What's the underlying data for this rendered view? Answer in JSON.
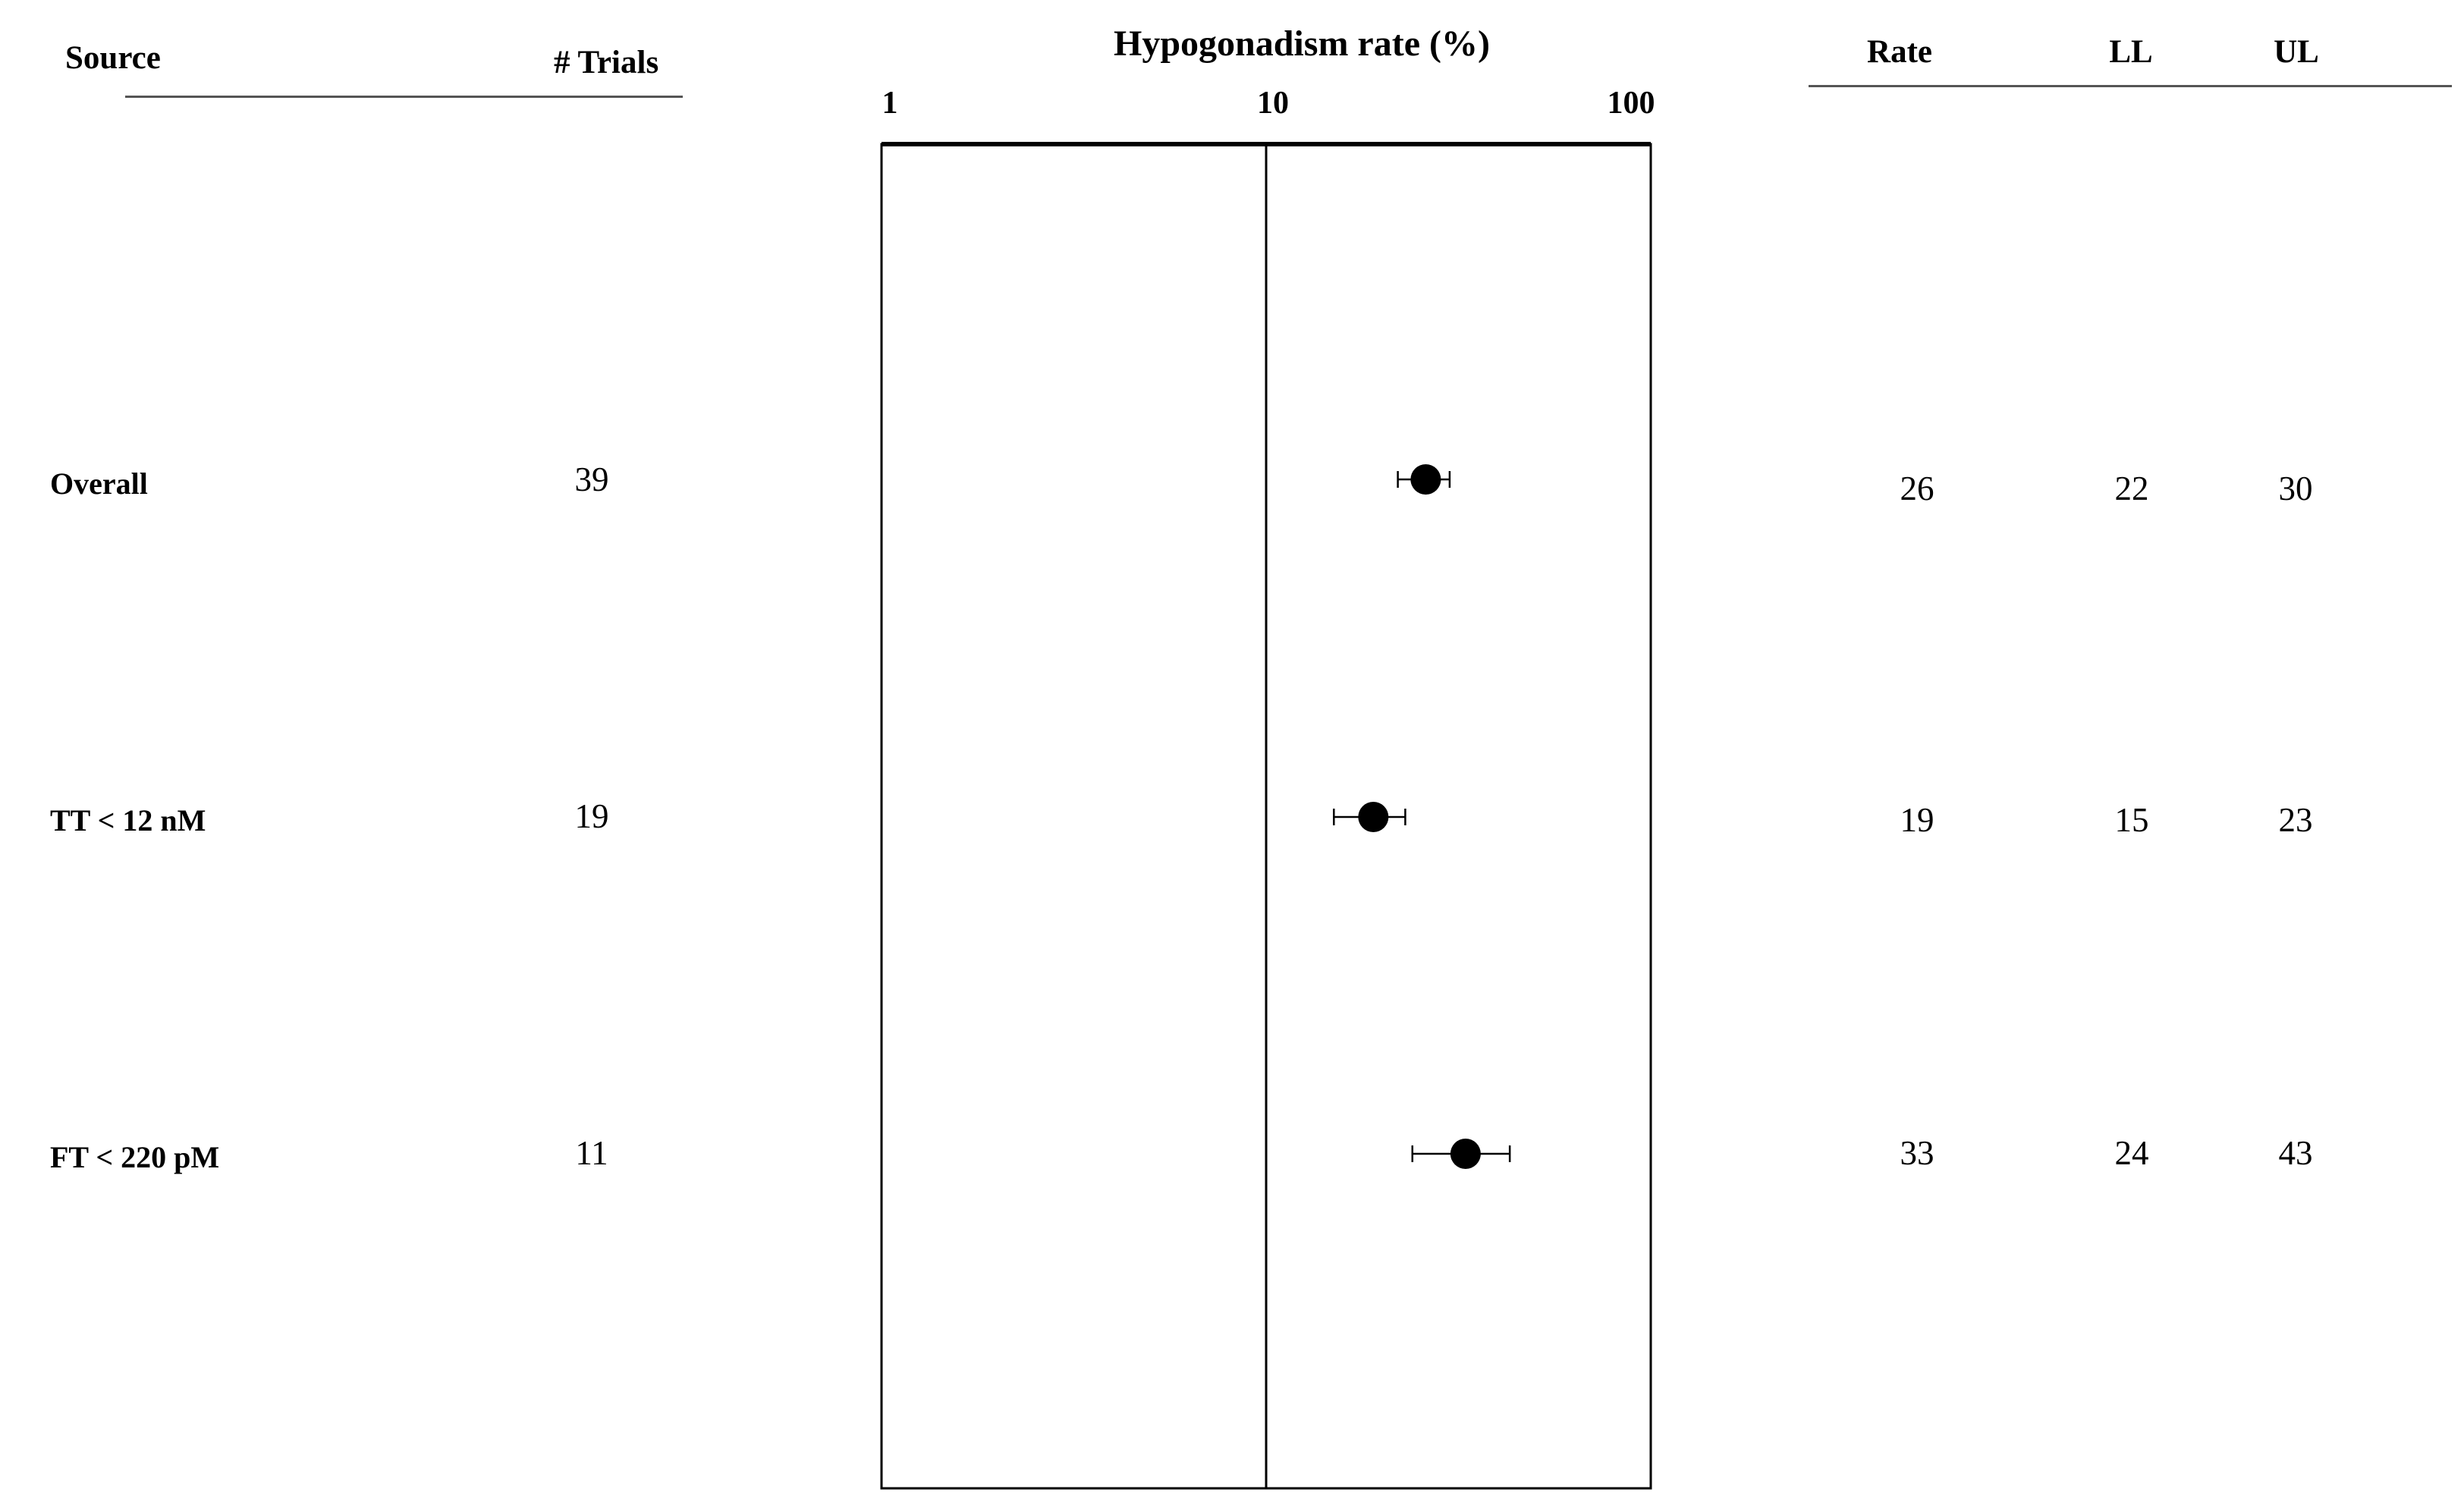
{
  "chart_data": {
    "type": "forest",
    "title": "Hypogonadism rate (%)",
    "x_scale": "log",
    "xlim": [
      1,
      100
    ],
    "x_ticks": [
      "1",
      "10",
      "100"
    ],
    "grid": false,
    "reference_line": 10,
    "columns": {
      "source": "Source",
      "trials": "# Trials",
      "rate": "Rate",
      "ll": "LL",
      "ul": "UL"
    },
    "rows": [
      {
        "source": "Overall",
        "trials": "39",
        "rate": 26,
        "ll": 22,
        "ul": 30
      },
      {
        "source": "TT < 12 nM",
        "trials": "19",
        "rate": 19,
        "ll": 15,
        "ul": 23
      },
      {
        "source": "FT < 220 pM",
        "trials": "11",
        "rate": 33,
        "ll": 24,
        "ul": 43
      }
    ]
  }
}
